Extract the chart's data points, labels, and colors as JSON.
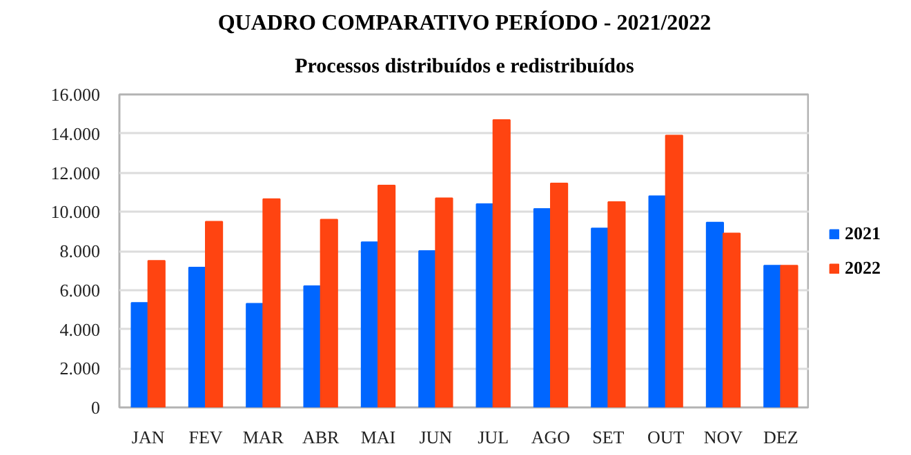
{
  "chart_data": {
    "type": "bar",
    "title": "QUADRO COMPARATIVO PERÍODO - 2021/2022",
    "subtitle": "Processos distribuídos e redistribuídos",
    "categories": [
      "JAN",
      "FEV",
      "MAR",
      "ABR",
      "MAI",
      "JUN",
      "JUL",
      "AGO",
      "SET",
      "OUT",
      "NOV",
      "DEZ"
    ],
    "series": [
      {
        "name": "2021",
        "color": "#0066ff",
        "values": [
          5350,
          7150,
          5300,
          6200,
          8450,
          8000,
          10400,
          10150,
          9150,
          10800,
          9450,
          7250
        ]
      },
      {
        "name": "2022",
        "color": "#ff4411",
        "values": [
          7500,
          9500,
          10650,
          9600,
          11350,
          10700,
          14700,
          11450,
          10500,
          13900,
          8900,
          7250
        ]
      }
    ],
    "ylim": [
      0,
      16000
    ],
    "yticks": [
      0,
      {
        "value": 2000,
        "label": "2.000"
      },
      {
        "value": 4000,
        "label": "4.000"
      },
      {
        "value": 6000,
        "label": "6.000"
      },
      {
        "value": 8000,
        "label": "8.000"
      },
      {
        "value": 10000,
        "label": "10.000"
      },
      {
        "value": 12000,
        "label": "12.000"
      },
      {
        "value": 14000,
        "label": "14.000"
      },
      {
        "value": 16000,
        "label": "16.000"
      }
    ],
    "grid": "y",
    "legend": "right"
  }
}
